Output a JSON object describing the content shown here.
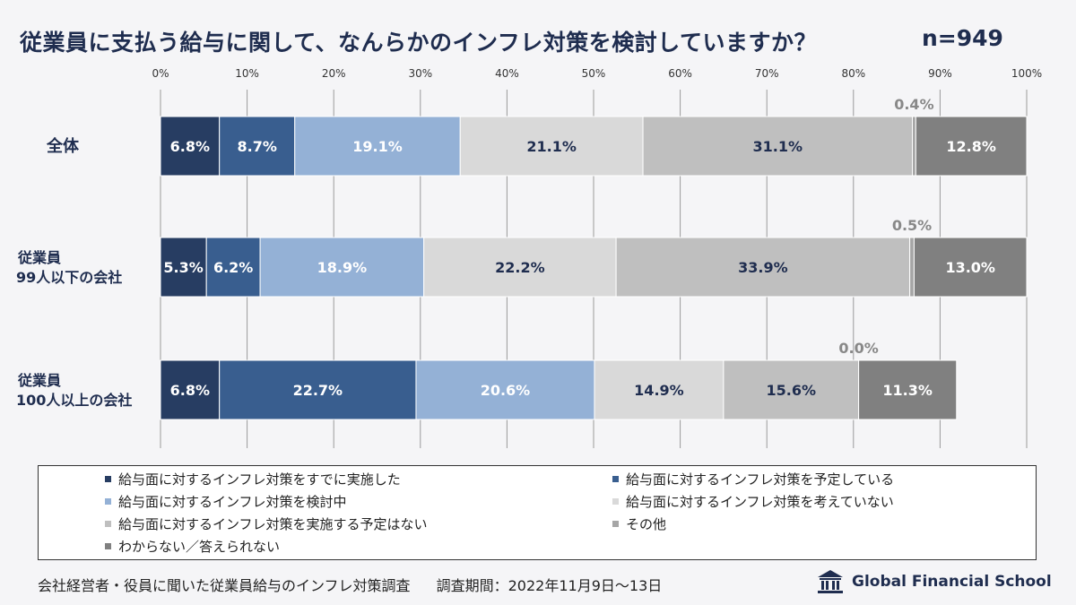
{
  "title": "従業員に支払う給与に関して、なんらかのインフレ対策を検討していますか？",
  "sample": "n=949",
  "chart_data": {
    "type": "bar",
    "orientation": "horizontal-stacked-100",
    "xlim": [
      0,
      100
    ],
    "ticks": [
      "0%",
      "10%",
      "20%",
      "30%",
      "40%",
      "50%",
      "60%",
      "70%",
      "80%",
      "90%",
      "100%"
    ],
    "rows": [
      {
        "label": "全体",
        "values": [
          6.8,
          8.7,
          19.1,
          21.1,
          31.1,
          0.4,
          12.8
        ]
      },
      {
        "label": "従業員\n99人以下の会社",
        "values": [
          5.3,
          6.2,
          18.9,
          22.2,
          33.9,
          0.5,
          13.0
        ]
      },
      {
        "label": "従業員\n100人以上の会社",
        "values": [
          6.8,
          22.7,
          20.6,
          14.9,
          15.6,
          0.0,
          11.3
        ]
      }
    ],
    "series": [
      {
        "name": "給与面に対するインフレ対策をすでに実施した",
        "color": "#273d62",
        "text_color": "#ffffff"
      },
      {
        "name": "給与面に対するインフレ対策を予定している",
        "color": "#395e8f",
        "text_color": "#ffffff"
      },
      {
        "name": "給与面に対するインフレ対策を検討中",
        "color": "#94b1d6",
        "text_color": "#ffffff"
      },
      {
        "name": "給与面に対するインフレ対策を考えていない",
        "color": "#d9d9d9",
        "text_color": "#1f2d4f"
      },
      {
        "name": "給与面に対するインフレ対策を実施する予定はない",
        "color": "#bfbfbf",
        "text_color": "#1f2d4f"
      },
      {
        "name": "その他",
        "color": "#a6a6a6",
        "text_color": "#888888"
      },
      {
        "name": "わからない／答えられない",
        "color": "#808080",
        "text_color": "#ffffff"
      }
    ],
    "value_suffix": "%"
  },
  "footer": {
    "survey": "会社経営者・役員に聞いた従業員給与のインフレ対策調査",
    "period": "調査期間：2022年11月9日〜13日"
  },
  "brand": {
    "name": "Global Financial School"
  }
}
